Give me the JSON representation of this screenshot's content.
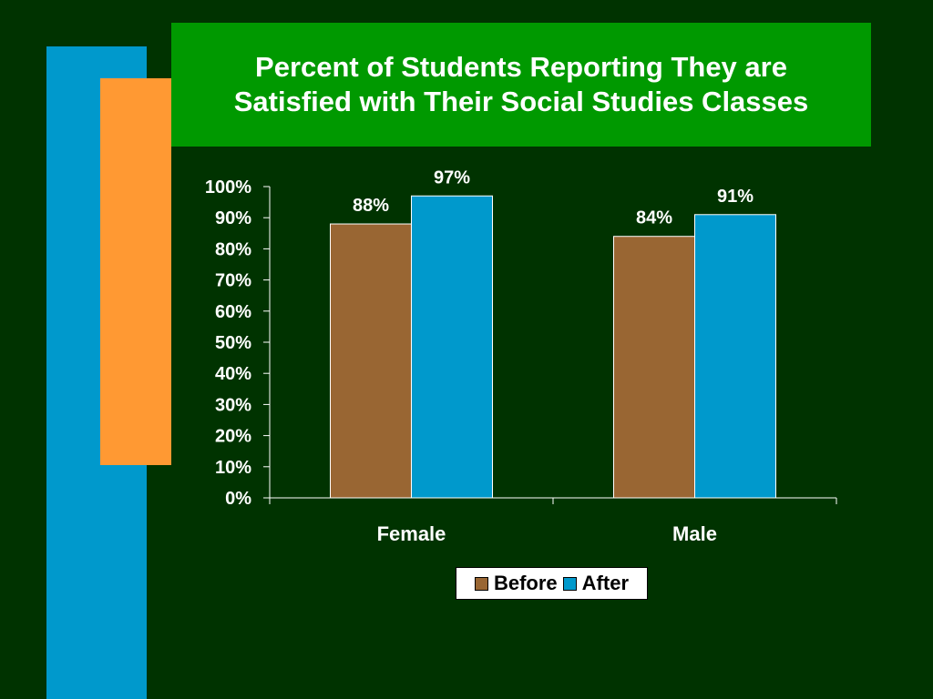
{
  "colors": {
    "background": "#003300",
    "title_bg": "#009900",
    "accent_blue": "#0099cc",
    "accent_orange": "#ff9933",
    "before": "#996633",
    "after": "#0099cc"
  },
  "slide": {
    "title_line1": "Percent of Students Reporting They are",
    "title_line2": "Satisfied with Their Social Studies Classes"
  },
  "chart_data": {
    "type": "bar",
    "categories": [
      "Female",
      "Male"
    ],
    "series": [
      {
        "name": "Before",
        "values": [
          88,
          84
        ],
        "labels": [
          "88%",
          "84%"
        ]
      },
      {
        "name": "After",
        "values": [
          97,
          91
        ],
        "labels": [
          "97%",
          "91%"
        ]
      }
    ],
    "ylim": [
      0,
      100
    ],
    "yticks": [
      0,
      10,
      20,
      30,
      40,
      50,
      60,
      70,
      80,
      90,
      100
    ],
    "ytick_labels": [
      "0%",
      "10%",
      "20%",
      "30%",
      "40%",
      "50%",
      "60%",
      "70%",
      "80%",
      "90%",
      "100%"
    ],
    "legend_position": "bottom",
    "grid": false
  }
}
